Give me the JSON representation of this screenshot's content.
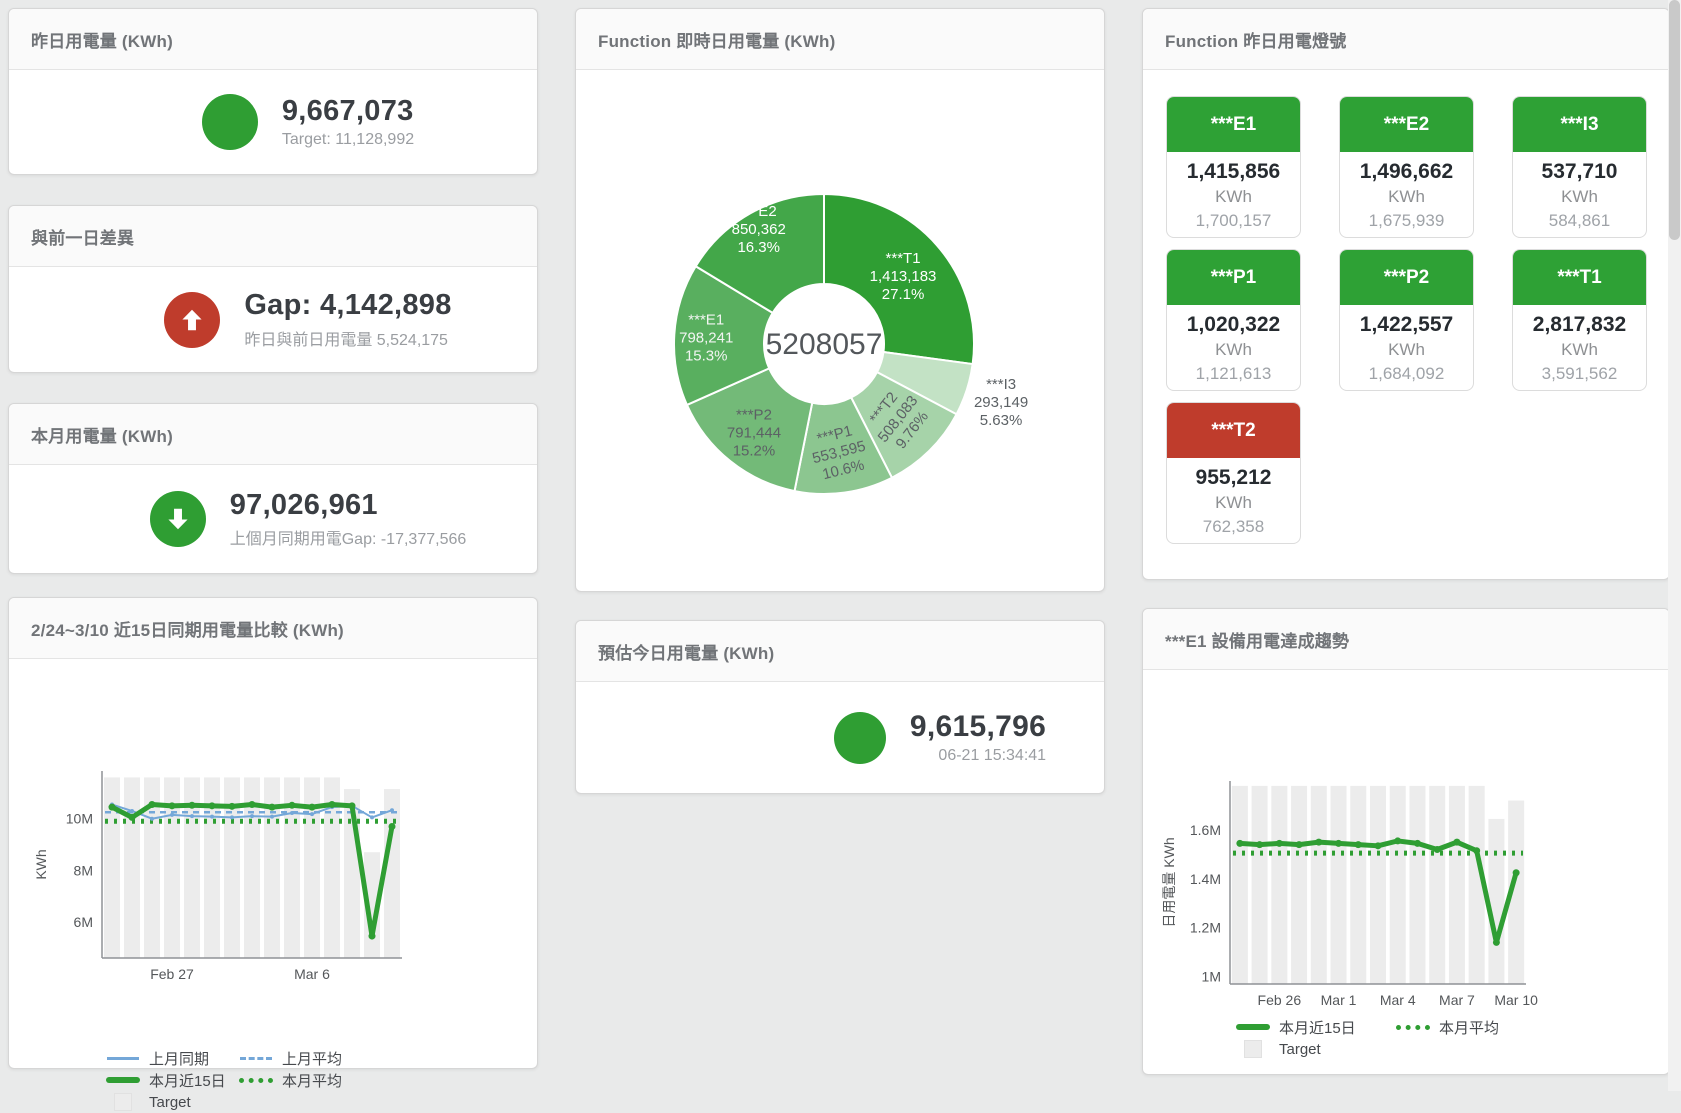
{
  "colors": {
    "green": "#2f9e33",
    "red": "#bf3c2c",
    "blue": "#74a7d8",
    "bar_grey": "#ececec"
  },
  "cards": {
    "yesterday": {
      "title": "昨日用電量 (KWh)",
      "value": "9,667,073",
      "sub": "Target: 11,128,992"
    },
    "gap": {
      "title": "與前一日差異",
      "value": "Gap: 4,142,898",
      "sub": "昨日與前日用電量 5,524,175"
    },
    "month": {
      "title": "本月用電量 (KWh)",
      "value": "97,026,961",
      "sub": "上個月同期用電Gap: -17,377,566"
    },
    "compare": {
      "title": "2/24~3/10 近15日同期用電量比較 (KWh)"
    },
    "realtime": {
      "title": "Function 即時日用電量 (KWh)"
    },
    "estimate": {
      "title": "預估今日用電量 (KWh)",
      "value": "9,615,796",
      "sub": "06-21 15:34:41"
    },
    "lights": {
      "title": "Function 昨日用電燈號",
      "tiles": [
        {
          "name": "***E1",
          "value": "1,415,856",
          "unit": "KWh",
          "sub": "1,700,157",
          "status": "green"
        },
        {
          "name": "***E2",
          "value": "1,496,662",
          "unit": "KWh",
          "sub": "1,675,939",
          "status": "green"
        },
        {
          "name": "***I3",
          "value": "537,710",
          "unit": "KWh",
          "sub": "584,861",
          "status": "green"
        },
        {
          "name": "***P1",
          "value": "1,020,322",
          "unit": "KWh",
          "sub": "1,121,613",
          "status": "green"
        },
        {
          "name": "***P2",
          "value": "1,422,557",
          "unit": "KWh",
          "sub": "1,684,092",
          "status": "green"
        },
        {
          "name": "***T1",
          "value": "2,817,832",
          "unit": "KWh",
          "sub": "3,591,562",
          "status": "green"
        },
        {
          "name": "***T2",
          "value": "955,212",
          "unit": "KWh",
          "sub": "762,358",
          "status": "red"
        }
      ]
    },
    "trend": {
      "title": "***E1 設備用電達成趨勢"
    }
  },
  "chart_data": [
    {
      "id": "compare",
      "type": "line",
      "title": "2/24~3/10 近15日同期用電量比較 (KWh)",
      "ylabel": "KWh",
      "unit": "M KWh",
      "x": [
        "2/24",
        "2/25",
        "2/26",
        "2/27",
        "2/28",
        "3/1",
        "3/2",
        "3/3",
        "3/4",
        "3/5",
        "3/6",
        "3/7",
        "3/8",
        "3/9",
        "3/10"
      ],
      "x_ticks": [
        {
          "i": 3,
          "label": "Feb 27"
        },
        {
          "i": 10,
          "label": "Mar 6"
        }
      ],
      "y_ticks": [
        {
          "v": 6,
          "label": "6M"
        },
        {
          "v": 8,
          "label": "8M"
        },
        {
          "v": 10,
          "label": "10M"
        }
      ],
      "ylim": [
        4.6,
        11.85
      ],
      "series": [
        {
          "name": "上月同期",
          "kind": "line-thin",
          "color": "#74a7d8",
          "values": [
            10.55,
            10.3,
            10.0,
            10.15,
            10.1,
            10.08,
            10.05,
            10.1,
            10.08,
            10.22,
            10.18,
            10.45,
            10.5,
            10.05,
            10.33
          ]
        },
        {
          "name": "上月平均",
          "kind": "const-dashed",
          "color": "#74a7d8",
          "value": 10.25
        },
        {
          "name": "本月近15日",
          "kind": "line-thick",
          "color": "#2f9e33",
          "values": [
            10.45,
            10.05,
            10.55,
            10.5,
            10.52,
            10.5,
            10.48,
            10.55,
            10.45,
            10.52,
            10.45,
            10.55,
            10.5,
            5.45,
            9.7
          ]
        },
        {
          "name": "本月平均",
          "kind": "const-dotted",
          "color": "#2f9e33",
          "value": 9.9
        },
        {
          "name": "Target",
          "kind": "bar",
          "color": "#ececec",
          "values": [
            11.6,
            11.6,
            11.6,
            11.6,
            11.6,
            11.6,
            11.6,
            11.6,
            11.6,
            11.6,
            11.6,
            11.6,
            11.15,
            8.7,
            11.15
          ]
        }
      ],
      "legend_position": "bottom"
    },
    {
      "id": "realtime-donut",
      "type": "pie",
      "title": "Function 即時日用電量 (KWh)",
      "center_total": "5208057",
      "slices": [
        {
          "name": "***T1",
          "value": 1413183,
          "display": "1,413,183",
          "pct": "27.1%",
          "color": "#2f9e33"
        },
        {
          "name": "***I3",
          "value": 293149,
          "display": "293,149",
          "pct": "5.63%",
          "color": "#c3e2c5"
        },
        {
          "name": "***T2",
          "value": 508083,
          "display": "508,083",
          "pct": "9.76%",
          "color": "#a6d3a9"
        },
        {
          "name": "***P1",
          "value": 553595,
          "display": "553,595",
          "pct": "10.6%",
          "color": "#8cc690"
        },
        {
          "name": "***P2",
          "value": 791444,
          "display": "791,444",
          "pct": "15.2%",
          "color": "#73ba78"
        },
        {
          "name": "***E1",
          "value": 798241,
          "display": "798,241",
          "pct": "15.3%",
          "color": "#59af5f"
        },
        {
          "name": "***E2",
          "value": 850362,
          "display": "850,362",
          "pct": "16.3%",
          "color": "#43a749"
        }
      ]
    },
    {
      "id": "e1-trend",
      "type": "line",
      "title": "***E1 設備用電達成趨勢",
      "ylabel": "日用電量 KWh",
      "unit": "M KWh",
      "x": [
        "2/24",
        "2/25",
        "2/26",
        "2/27",
        "2/28",
        "3/1",
        "3/2",
        "3/3",
        "3/4",
        "3/5",
        "3/6",
        "3/7",
        "3/8",
        "3/9",
        "3/10"
      ],
      "x_ticks": [
        {
          "i": 2,
          "label": "Feb 26"
        },
        {
          "i": 5,
          "label": "Mar 1"
        },
        {
          "i": 8,
          "label": "Mar 4"
        },
        {
          "i": 11,
          "label": "Mar 7"
        },
        {
          "i": 14,
          "label": "Mar 10"
        }
      ],
      "y_ticks": [
        {
          "v": 1,
          "label": "1M"
        },
        {
          "v": 1.2,
          "label": "1.2M"
        },
        {
          "v": 1.4,
          "label": "1.4M"
        },
        {
          "v": 1.6,
          "label": "1.6M"
        }
      ],
      "ylim": [
        0.97,
        1.8
      ],
      "series": [
        {
          "name": "本月近15日",
          "kind": "line-thick",
          "color": "#2f9e33",
          "values": [
            1.545,
            1.54,
            1.545,
            1.54,
            1.55,
            1.545,
            1.54,
            1.535,
            1.555,
            1.545,
            1.52,
            1.55,
            1.515,
            1.14,
            1.425
          ]
        },
        {
          "name": "本月平均",
          "kind": "const-dotted",
          "color": "#2f9e33",
          "value": 1.505
        },
        {
          "name": "Target",
          "kind": "bar",
          "color": "#ececec",
          "values": [
            1.78,
            1.78,
            1.78,
            1.78,
            1.78,
            1.78,
            1.78,
            1.78,
            1.78,
            1.78,
            1.78,
            1.78,
            1.78,
            1.645,
            1.72
          ]
        }
      ],
      "legend_position": "bottom"
    }
  ]
}
